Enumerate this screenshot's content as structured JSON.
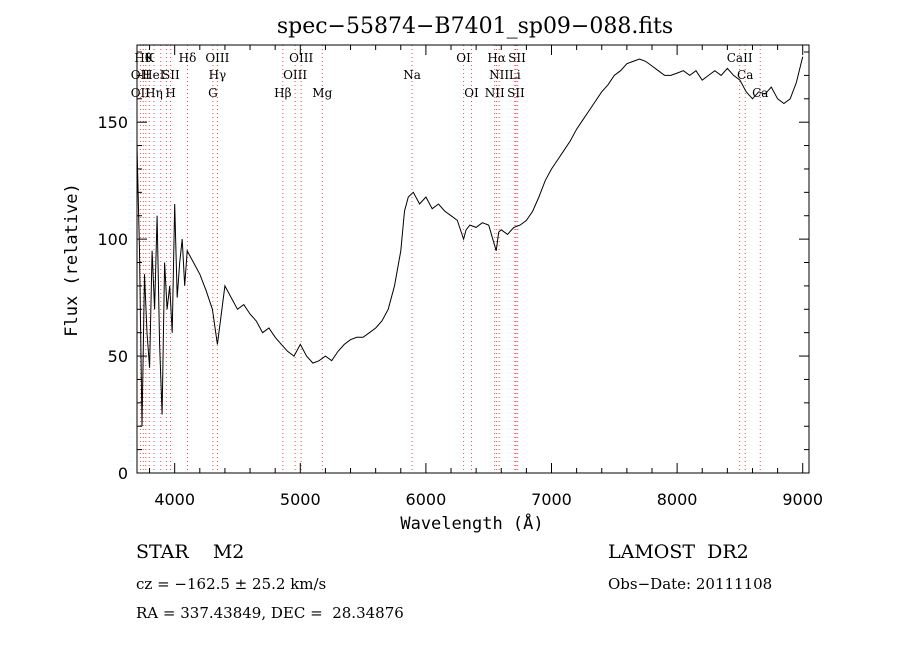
{
  "chart_data": {
    "type": "line",
    "title": "spec−55874−B7401_sp09−088.fits",
    "xlabel": "Wavelength (Å)",
    "ylabel": "Flux (relative)",
    "xlim": [
      3700,
      9050
    ],
    "ylim": [
      0,
      183
    ],
    "xticks": [
      4000,
      5000,
      6000,
      7000,
      8000,
      9000
    ],
    "yticks": [
      0,
      50,
      100,
      150
    ],
    "grid": false,
    "line_color": "#000000",
    "marker_color": "#d9534f",
    "series": [
      {
        "x": [
          3700,
          3720,
          3740,
          3760,
          3780,
          3800,
          3820,
          3840,
          3860,
          3880,
          3900,
          3920,
          3940,
          3960,
          3980,
          4000,
          4020,
          4040,
          4060,
          4080,
          4100,
          4150,
          4200,
          4250,
          4300,
          4340,
          4400,
          4450,
          4500,
          4550,
          4600,
          4650,
          4700,
          4750,
          4800,
          4850,
          4900,
          4950,
          5000,
          5050,
          5100,
          5150,
          5200,
          5250,
          5300,
          5350,
          5400,
          5450,
          5500,
          5550,
          5600,
          5650,
          5700,
          5750,
          5800,
          5830,
          5860,
          5900,
          5950,
          6000,
          6050,
          6100,
          6150,
          6200,
          6250,
          6300,
          6320,
          6350,
          6400,
          6450,
          6500,
          6560,
          6580,
          6600,
          6650,
          6700,
          6750,
          6800,
          6850,
          6900,
          6950,
          7000,
          7050,
          7100,
          7150,
          7200,
          7250,
          7300,
          7350,
          7400,
          7450,
          7500,
          7550,
          7600,
          7650,
          7700,
          7750,
          7800,
          7850,
          7900,
          7950,
          8000,
          8050,
          8100,
          8150,
          8200,
          8250,
          8300,
          8350,
          8400,
          8450,
          8500,
          8550,
          8600,
          8650,
          8700,
          8750,
          8800,
          8850,
          8900,
          8950,
          9000
        ],
        "y": [
          140,
          95,
          20,
          85,
          60,
          45,
          95,
          70,
          110,
          55,
          25,
          90,
          70,
          80,
          60,
          115,
          75,
          90,
          100,
          80,
          95,
          90,
          85,
          78,
          70,
          55,
          80,
          75,
          70,
          72,
          68,
          65,
          60,
          62,
          58,
          55,
          52,
          50,
          55,
          50,
          47,
          48,
          50,
          48,
          52,
          55,
          57,
          58,
          58,
          60,
          62,
          65,
          70,
          80,
          95,
          112,
          118,
          120,
          115,
          118,
          113,
          115,
          112,
          110,
          108,
          100,
          104,
          106,
          105,
          107,
          106,
          95,
          103,
          104,
          102,
          105,
          106,
          108,
          112,
          118,
          125,
          130,
          134,
          138,
          142,
          147,
          151,
          155,
          159,
          163,
          166,
          170,
          172,
          175,
          176,
          177,
          176,
          174,
          172,
          170,
          170,
          171,
          172,
          170,
          172,
          168,
          170,
          172,
          170,
          173,
          170,
          168,
          163,
          160,
          163,
          162,
          165,
          160,
          158,
          160,
          167,
          178
        ]
      }
    ],
    "lines_row1": [
      {
        "x": 3750,
        "label": "Hθ"
      },
      {
        "x": 3800,
        "label": "K"
      },
      {
        "x": 4102,
        "label": "Hδ"
      },
      {
        "x": 4340,
        "label": "OIII"
      },
      {
        "x": 5007,
        "label": "OIII"
      },
      {
        "x": 6300,
        "label": "OI"
      },
      {
        "x": 6563,
        "label": "Hα"
      },
      {
        "x": 6725,
        "label": "SII"
      },
      {
        "x": 8498,
        "label": "CaII"
      }
    ],
    "lines_row2": [
      {
        "x": 3727,
        "label": "OII"
      },
      {
        "x": 3830,
        "label": "HeI"
      },
      {
        "x": 3970,
        "label": "SII"
      },
      {
        "x": 4340,
        "label": "Hγ"
      },
      {
        "x": 4959,
        "label": "OIII"
      },
      {
        "x": 5890,
        "label": "Na"
      },
      {
        "x": 6583,
        "label": "NII"
      },
      {
        "x": 6708,
        "label": "Li"
      },
      {
        "x": 8542,
        "label": "Ca"
      }
    ],
    "lines_row3": [
      {
        "x": 3727,
        "label": "OII"
      },
      {
        "x": 3835,
        "label": "Hη"
      },
      {
        "x": 3968,
        "label": "H"
      },
      {
        "x": 4304,
        "label": "G"
      },
      {
        "x": 4861,
        "label": "Hβ"
      },
      {
        "x": 5175,
        "label": "Mg"
      },
      {
        "x": 6363,
        "label": "OI"
      },
      {
        "x": 6548,
        "label": "NII"
      },
      {
        "x": 6717,
        "label": "SII"
      },
      {
        "x": 8662,
        "label": "Ca"
      }
    ],
    "marker_lines": [
      3727,
      3750,
      3770,
      3798,
      3835,
      3889,
      3934,
      3968,
      4102,
      4304,
      4340,
      4861,
      4959,
      5007,
      5175,
      5890,
      6300,
      6363,
      6548,
      6563,
      6583,
      6708,
      6717,
      6731,
      8498,
      8542,
      8662
    ]
  },
  "info": {
    "class": "STAR    M2",
    "survey": "LAMOST  DR2",
    "cz": "cz = −162.5 ± 25.2 km/s",
    "obsdate": "Obs−Date: 20111108",
    "radec": "RA = 337.43849, DEC =  28.34876"
  }
}
